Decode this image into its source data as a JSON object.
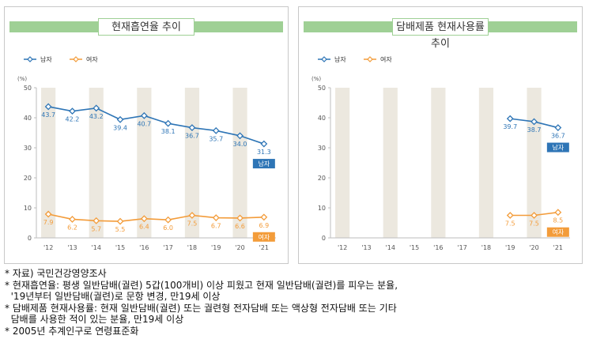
{
  "chart_data": [
    {
      "type": "line",
      "title": "현재흡연율 추이",
      "ylabel": "(%)",
      "categories": [
        "'12",
        "'13",
        "'14",
        "'15",
        "'16",
        "'17",
        "'18",
        "'19",
        "'20",
        "'21"
      ],
      "ylim": [
        0,
        50
      ],
      "yticks": [
        0,
        10,
        20,
        30,
        40,
        50
      ],
      "legend_position": "top-left",
      "series": [
        {
          "name": "남자",
          "color": "#2e75b6",
          "end_label": "남자",
          "values": [
            43.7,
            42.2,
            43.2,
            39.4,
            40.7,
            38.1,
            36.7,
            35.7,
            34.0,
            31.3
          ]
        },
        {
          "name": "여자",
          "color": "#f39c3a",
          "end_label": "여자",
          "values": [
            7.9,
            6.2,
            5.7,
            5.5,
            6.4,
            6.0,
            7.5,
            6.7,
            6.6,
            6.9
          ]
        }
      ]
    },
    {
      "type": "line",
      "title": "담배제품 현재사용률 추이",
      "ylabel": "(%)",
      "categories": [
        "'12",
        "'13",
        "'14",
        "'15",
        "'16",
        "'17",
        "'18",
        "'19",
        "'20",
        "'21"
      ],
      "ylim": [
        0,
        50
      ],
      "yticks": [
        0,
        10,
        20,
        30,
        40,
        50
      ],
      "legend_position": "top-left",
      "series": [
        {
          "name": "남자",
          "color": "#2e75b6",
          "end_label": "남자",
          "values": [
            null,
            null,
            null,
            null,
            null,
            null,
            null,
            39.7,
            38.7,
            36.7
          ]
        },
        {
          "name": "여자",
          "color": "#f39c3a",
          "end_label": "여자",
          "values": [
            null,
            null,
            null,
            null,
            null,
            null,
            null,
            7.5,
            7.5,
            8.5
          ]
        }
      ]
    }
  ],
  "colors": {
    "band": "#ece8df",
    "axis": "#bdbdbd",
    "title_strip": "#9fd095"
  },
  "footnotes": [
    "* 자료) 국민건강영양조사",
    "* 현재흡연율: 평생 일반담배(궐련) 5갑(100개비) 이상 피웠고 현재 일반담배(궐련)를 피우는 분율,",
    "  '19년부터 일반담배(궐련)로 문항 변경, 만19세 이상",
    "* 담배제품 현재사용률: 현재 일반담배(궐련) 또는 궐련형 전자담배 또는 액상형 전자담배 또는 기타",
    "  담배를 사용한 적이 있는 분율, 만19세 이상",
    "* 2005년 추계인구로 연령표준화"
  ]
}
